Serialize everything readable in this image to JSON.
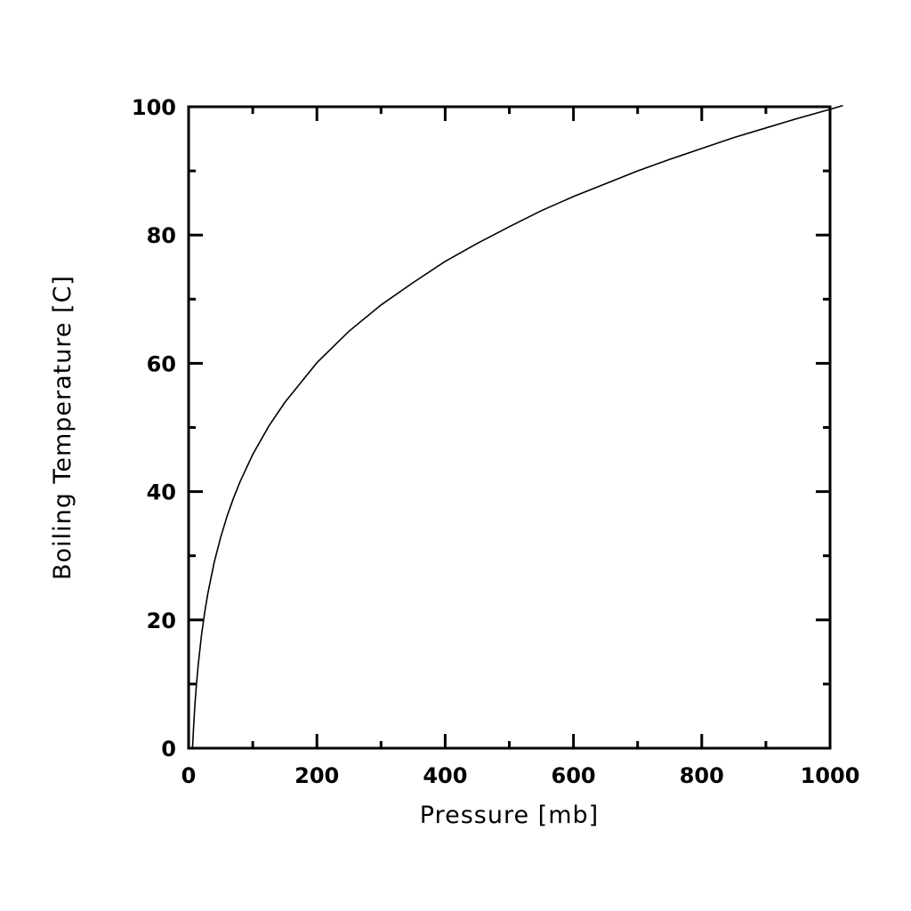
{
  "chart_data": {
    "type": "line",
    "title": "",
    "xlabel": "Pressure [mb]",
    "ylabel": "Boiling Temperature [C]",
    "xlim": [
      0,
      1000
    ],
    "ylim": [
      0,
      100
    ],
    "x_ticks": [
      0,
      200,
      400,
      600,
      800,
      1000
    ],
    "y_ticks": [
      0,
      20,
      40,
      60,
      80,
      100
    ],
    "x_tick_labels": [
      "0",
      "200",
      "400",
      "600",
      "800",
      "1000"
    ],
    "y_tick_labels": [
      "0",
      "20",
      "40",
      "60",
      "80",
      "100"
    ],
    "grid": false,
    "legend": "none",
    "line_color": "#000000",
    "series": [
      {
        "x": [
          6.1,
          8,
          10,
          12,
          15,
          20,
          25,
          30,
          40,
          50,
          60,
          70,
          80,
          100,
          125,
          150,
          175,
          200,
          250,
          300,
          350,
          400,
          450,
          500,
          550,
          600,
          650,
          700,
          750,
          800,
          850,
          900,
          950,
          1000,
          1020
        ],
        "y": [
          0,
          3.8,
          7,
          9.7,
          13.0,
          17.5,
          21.1,
          24.1,
          29.0,
          32.9,
          36.2,
          39.0,
          41.5,
          45.8,
          50.2,
          53.9,
          57.0,
          60.1,
          65.0,
          69.1,
          72.6,
          75.9,
          78.7,
          81.3,
          83.8,
          86.0,
          88.0,
          90.0,
          91.8,
          93.5,
          95.2,
          96.7,
          98.2,
          99.6,
          100.2
        ]
      }
    ]
  }
}
